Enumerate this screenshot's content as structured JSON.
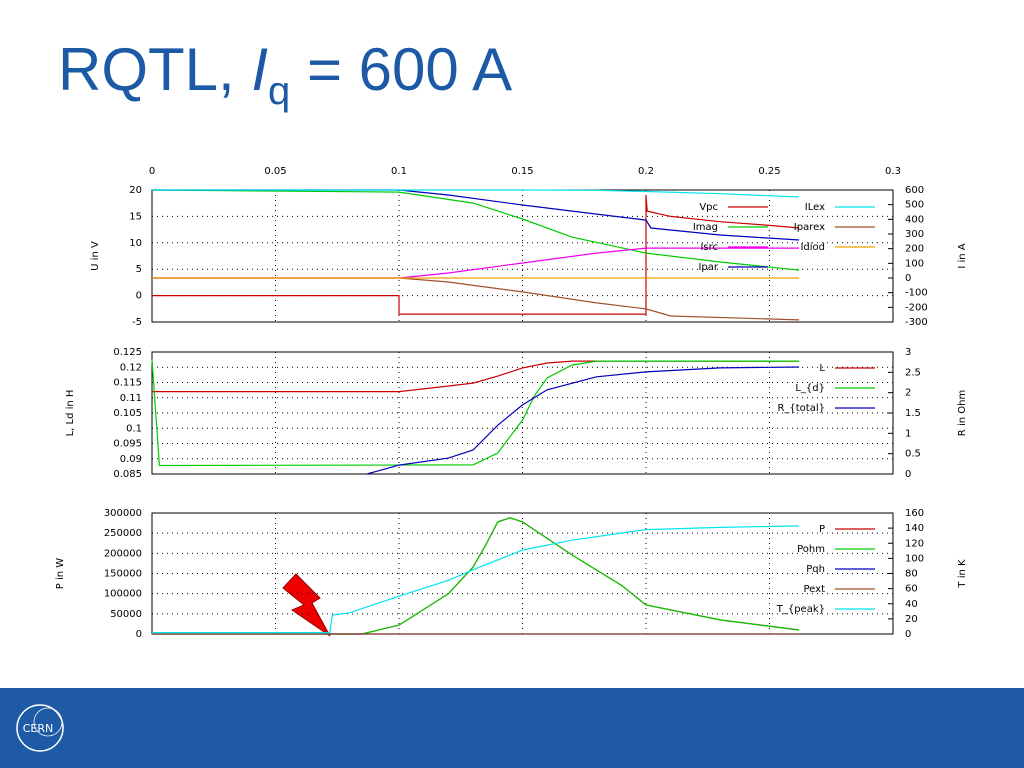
{
  "header": {
    "title_parts": [
      "RQTL, ",
      "I",
      "q",
      " = 600 A"
    ]
  },
  "footer": {
    "logo_text": "CERN"
  },
  "chart_data": [
    {
      "type": "line",
      "ylabel": "U in V",
      "y2label": "I in A",
      "xlim": [
        0,
        0.3
      ],
      "xticks": [
        0,
        0.05,
        0.1,
        0.15,
        0.2,
        0.25,
        0.3
      ],
      "ylim": [
        -5,
        20
      ],
      "yticks": [
        -5,
        0,
        5,
        10,
        15,
        20
      ],
      "y2lim": [
        -300,
        600
      ],
      "y2ticks": [
        -300,
        -200,
        -100,
        0,
        100,
        200,
        300,
        400,
        500,
        600
      ],
      "grid": true,
      "series": [
        {
          "name": "Vpc",
          "color": "#cc0000",
          "x": [
            0,
            0.1,
            0.1,
            0.2,
            0.2,
            0.2005,
            0.21,
            0.23,
            0.25,
            0.262
          ],
          "values": [
            0,
            0,
            -3.5,
            -3.5,
            19,
            16,
            15,
            14,
            13.3,
            12.8
          ]
        },
        {
          "name": "Imag",
          "color": "#00cc00",
          "axis": "y2",
          "x": [
            0,
            0.1,
            0.13,
            0.15,
            0.17,
            0.2,
            0.23,
            0.262
          ],
          "values": [
            600,
            586,
            511,
            402,
            279,
            170,
            109,
            54
          ]
        },
        {
          "name": "Isrc",
          "color": "#ee00ee",
          "axis": "y2",
          "x": [
            0,
            0.1,
            0.12,
            0.15,
            0.18,
            0.2,
            0.23,
            0.262
          ],
          "values": [
            0,
            0,
            34,
            102,
            170,
            204,
            204,
            204
          ]
        },
        {
          "name": "Ipar",
          "color": "#0000bb",
          "axis": "y2",
          "x": [
            0,
            0.1,
            0.12,
            0.15,
            0.18,
            0.2,
            0.202,
            0.23,
            0.262
          ],
          "values": [
            600,
            600,
            566,
            498,
            436,
            395,
            341,
            293,
            259
          ]
        },
        {
          "name": "ILex",
          "color": "#00e5ee",
          "axis": "y2",
          "x": [
            0,
            0.15,
            0.18,
            0.2,
            0.23,
            0.262
          ],
          "values": [
            600,
            600,
            598,
            590,
            575,
            552
          ]
        },
        {
          "name": "Iparex",
          "color": "#a0522d",
          "axis": "y2",
          "x": [
            0,
            0.1,
            0.12,
            0.15,
            0.18,
            0.2,
            0.21,
            0.262
          ],
          "values": [
            0,
            0,
            -27,
            -95,
            -170,
            -211,
            -259,
            -286
          ]
        },
        {
          "name": "Idiod",
          "color": "#f0a000",
          "axis": "y2",
          "x": [
            0,
            0.262
          ],
          "values": [
            0,
            0
          ]
        }
      ]
    },
    {
      "type": "line",
      "ylabel": "L, Ld in H",
      "y2label": "R in Ohm",
      "ylim": [
        0.085,
        0.125
      ],
      "yticks": [
        0.085,
        0.09,
        0.095,
        0.1,
        0.105,
        0.11,
        0.115,
        0.12,
        0.125
      ],
      "y2lim": [
        0,
        3
      ],
      "y2ticks": [
        0,
        0.5,
        1,
        1.5,
        2,
        2.5,
        3
      ],
      "grid": true,
      "series": [
        {
          "name": "L",
          "color": "#cc0000",
          "x": [
            0,
            0.1,
            0.11,
            0.13,
            0.14,
            0.15,
            0.16,
            0.17,
            0.262
          ],
          "values": [
            0.112,
            0.112,
            0.1129,
            0.1148,
            0.1171,
            0.1198,
            0.1214,
            0.122,
            0.122
          ]
        },
        {
          "name": "L_{d}",
          "color": "#00cc00",
          "x": [
            0,
            0.003,
            0.13,
            0.14,
            0.15,
            0.155,
            0.16,
            0.17,
            0.18,
            0.262
          ],
          "values": [
            0.1225,
            0.0878,
            0.088,
            0.0919,
            0.1027,
            0.1109,
            0.1165,
            0.1207,
            0.122,
            0.122
          ]
        },
        {
          "name": "R_{total}",
          "color": "#0000bb",
          "axis": "y2",
          "x": [
            0.087,
            0.1,
            0.12,
            0.13,
            0.14,
            0.15,
            0.16,
            0.18,
            0.2,
            0.23,
            0.262
          ],
          "values": [
            0,
            0.22,
            0.39,
            0.59,
            1.2,
            1.7,
            2.07,
            2.39,
            2.51,
            2.61,
            2.63
          ]
        }
      ]
    },
    {
      "type": "line",
      "ylabel": "P in W",
      "y2label": "T in K",
      "ylim": [
        0,
        300000
      ],
      "yticks": [
        0,
        50000,
        100000,
        150000,
        200000,
        250000,
        300000
      ],
      "y2lim": [
        0,
        160
      ],
      "y2ticks": [
        0,
        20,
        40,
        60,
        80,
        100,
        120,
        140,
        160
      ],
      "grid": true,
      "series": [
        {
          "name": "P",
          "color": "#cc0000",
          "x": [
            0,
            0.085,
            0.1,
            0.12,
            0.13,
            0.135,
            0.14,
            0.145,
            0.15,
            0.17,
            0.19,
            0.2,
            0.23,
            0.262
          ],
          "values": [
            0,
            0,
            22000,
            100000,
            166000,
            220000,
            278000,
            288000,
            278000,
            196000,
            121000,
            72000,
            35000,
            10000
          ]
        },
        {
          "name": "Pohm",
          "color": "#00cc00",
          "x": [
            0,
            0.085,
            0.1,
            0.12,
            0.13,
            0.135,
            0.14,
            0.145,
            0.15,
            0.17,
            0.19,
            0.2,
            0.23,
            0.262
          ],
          "values": [
            0,
            0,
            22000,
            100000,
            166000,
            220000,
            278000,
            288000,
            278000,
            196000,
            121000,
            72000,
            35000,
            10000
          ]
        },
        {
          "name": "Pqh",
          "color": "#0000bb",
          "x": [
            0,
            0.262
          ],
          "values": [
            0,
            0
          ]
        },
        {
          "name": "Pext",
          "color": "#a0522d",
          "x": [
            0,
            0.262
          ],
          "values": [
            0,
            0
          ]
        },
        {
          "name": "T_{peak}",
          "color": "#00e5ee",
          "axis": "y2",
          "x": [
            0,
            0.072,
            0.073,
            0.08,
            0.1,
            0.12,
            0.13,
            0.15,
            0.17,
            0.2,
            0.23,
            0.262
          ],
          "values": [
            1.9,
            1.9,
            25,
            28,
            50,
            71,
            85,
            111,
            124,
            138,
            141,
            143
          ]
        }
      ]
    }
  ]
}
